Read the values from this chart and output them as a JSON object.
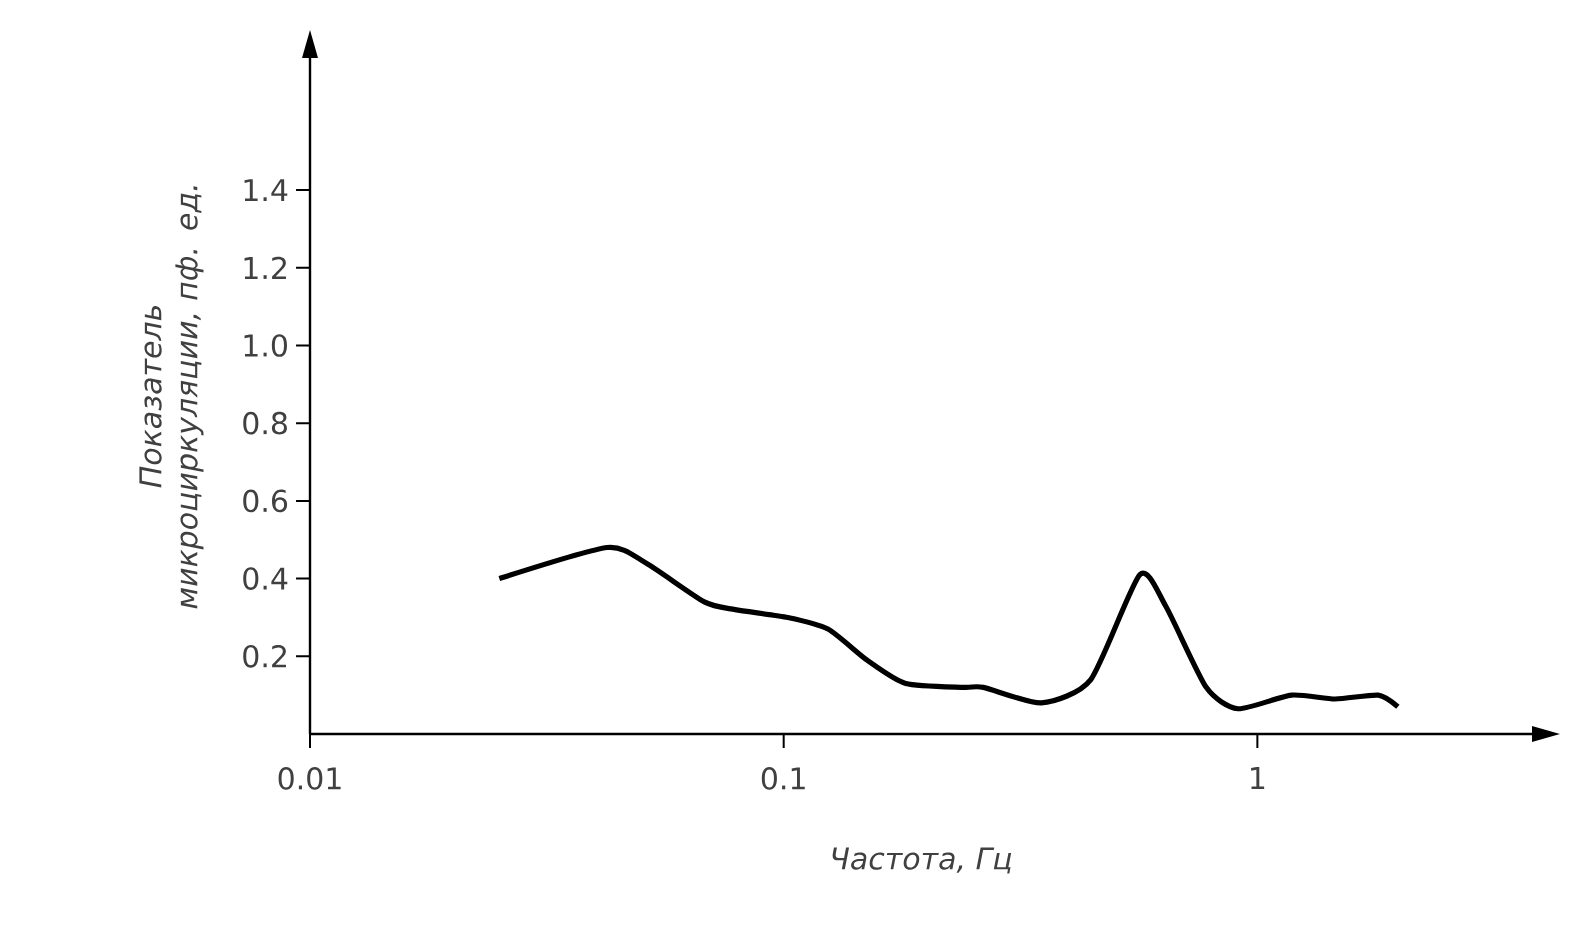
{
  "chart_data": {
    "type": "line",
    "xlabel": "Частота, Гц",
    "ylabel": "Показатель микроциркуляции, пф. ед.",
    "log": "x",
    "x": [
      0.0251,
      0.0424,
      0.0512,
      0.068,
      0.079,
      0.102,
      0.124,
      0.15,
      0.181,
      0.24,
      0.264,
      0.35,
      0.445,
      0.565,
      0.64,
      0.78,
      0.91,
      1.18,
      1.46,
      1.8,
      1.98
    ],
    "series": [
      {
        "color": "#000000",
        "line_style": "solid",
        "values": [
          0.4,
          0.48,
          0.44,
          0.34,
          0.32,
          0.3,
          0.27,
          0.19,
          0.13,
          0.12,
          0.12,
          0.08,
          0.14,
          0.41,
          0.33,
          0.12,
          0.065,
          0.1,
          0.09,
          0.1,
          0.07
        ]
      }
    ],
    "xlim": [
      0.01,
      3.8
    ],
    "ylim": [
      0,
      1.74
    ],
    "xticks": [
      0.01,
      0.1,
      {
        "value": 1,
        "label": "1"
      }
    ],
    "yticks": [
      0.2,
      0.4,
      0.6,
      0.8,
      {
        "value": 1,
        "label": "1.0"
      },
      1.2,
      1.4
    ],
    "marker": "none"
  }
}
